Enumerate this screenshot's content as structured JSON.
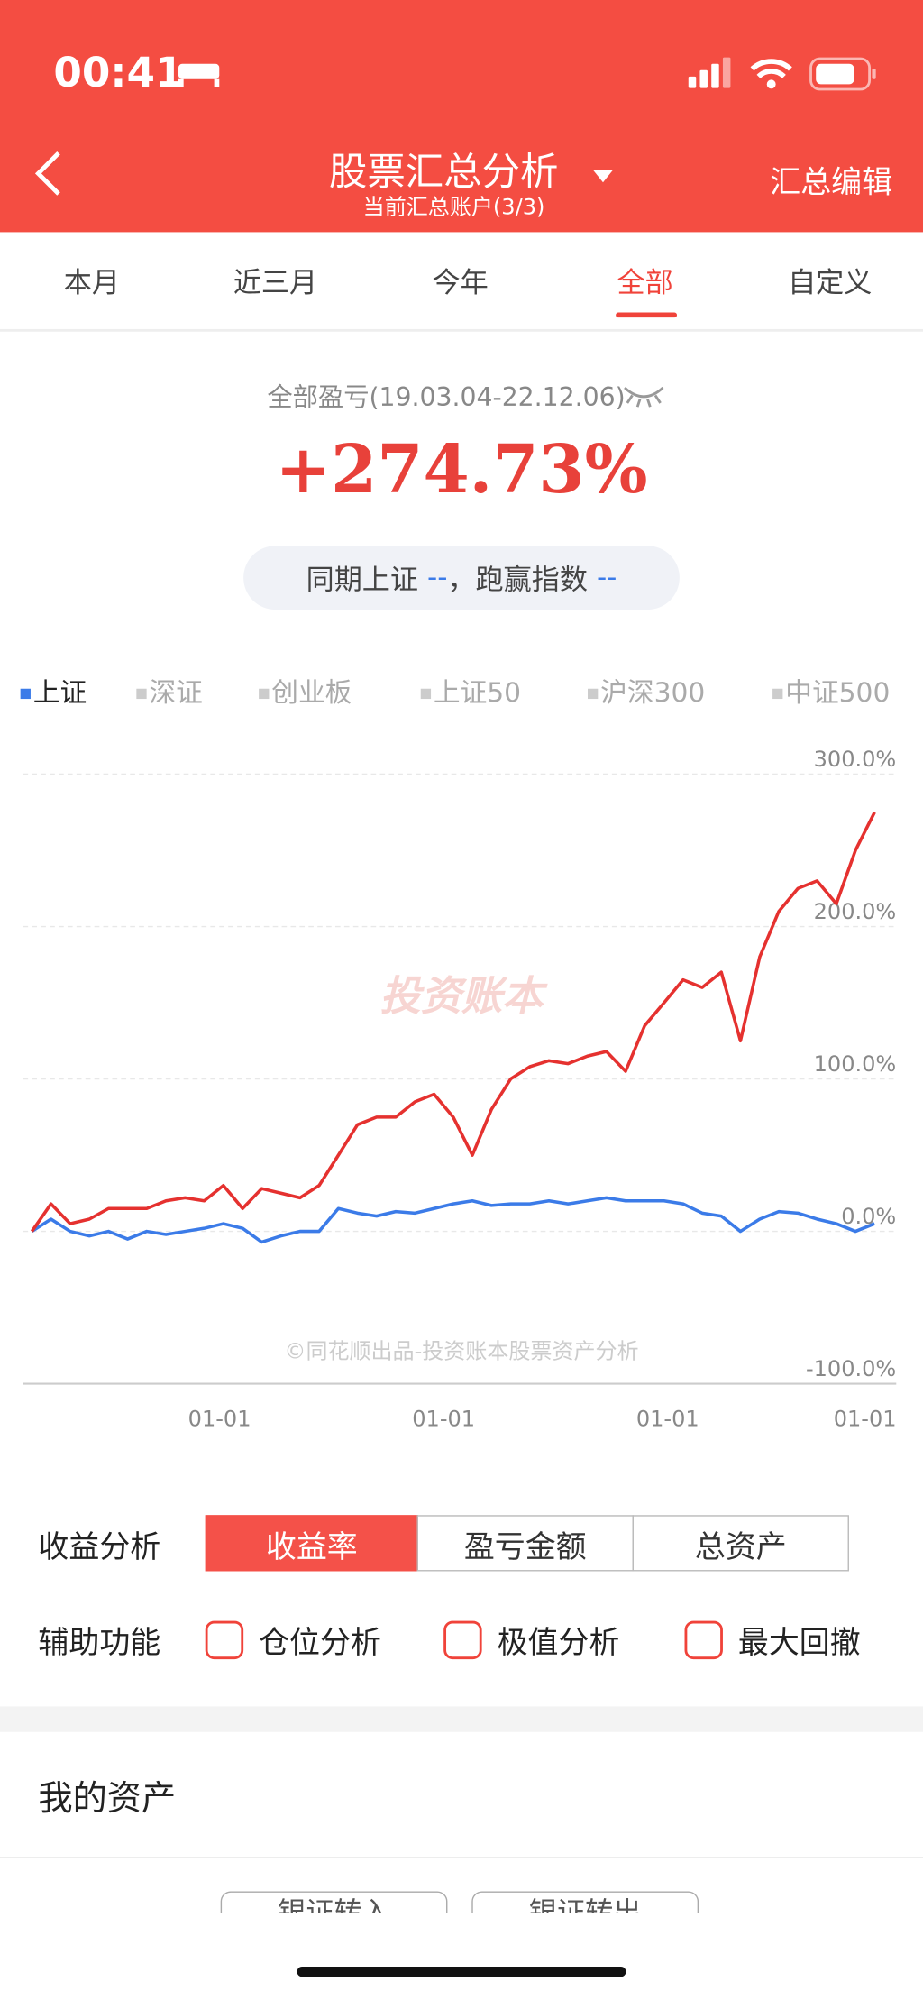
{
  "status_bar": {
    "time": "00:41"
  },
  "header": {
    "title": "股票汇总分析",
    "subtitle": "当前汇总账户(3/3)",
    "action": "汇总编辑"
  },
  "tabs": [
    "本月",
    "近三月",
    "今年",
    "全部",
    "自定义"
  ],
  "summary": {
    "label": "全部盈亏(19.03.04-22.12.06)",
    "value": "+274.73%",
    "compare_label": "同期上证",
    "compare_value": "--",
    "beat_label": "，跑赢指数",
    "beat_value": "--"
  },
  "index_tabs": [
    "深证",
    "创业板",
    "上证50",
    "沪深300",
    "中证500"
  ],
  "chart_data": {
    "type": "line",
    "series": [
      {
        "color": "#e5312f",
        "values": [
          0,
          18,
          5,
          8,
          15,
          15,
          15,
          20,
          22,
          20,
          30,
          15,
          28,
          25,
          22,
          30,
          50,
          70,
          75,
          75,
          85,
          90,
          75,
          50,
          80,
          100,
          108,
          112,
          110,
          115,
          118,
          105,
          135,
          150,
          165,
          160,
          170,
          125,
          180,
          210,
          225,
          230,
          215,
          250,
          275
        ]
      },
      {
        "name": "上证",
        "color": "#3b7be8",
        "values": [
          0,
          8,
          0,
          -3,
          0,
          -5,
          0,
          -2,
          0,
          2,
          5,
          2,
          -7,
          -3,
          0,
          0,
          15,
          12,
          10,
          13,
          12,
          15,
          18,
          20,
          17,
          18,
          18,
          20,
          18,
          20,
          22,
          20,
          20,
          20,
          18,
          12,
          10,
          0,
          8,
          13,
          12,
          8,
          5,
          0,
          5
        ]
      }
    ],
    "xlim": [
      0,
      44
    ],
    "xticks": [
      {
        "value": 9.8,
        "label": "01-01"
      },
      {
        "value": 21.5,
        "label": "01-01"
      },
      {
        "value": 33.2,
        "label": "01-01"
      },
      {
        "value": 43.5,
        "label": "01-01"
      }
    ],
    "ylim": [
      -100,
      300
    ],
    "yticks": [
      {
        "value": -100,
        "label": "-100.0%"
      },
      {
        "value": 0,
        "label": "0.0%"
      },
      {
        "value": 100,
        "label": "100.0%"
      },
      {
        "value": 200,
        "label": "200.0%"
      },
      {
        "value": 300,
        "label": "300.0%"
      }
    ],
    "grid": true,
    "watermark": "投资账本",
    "footnote": "©同花顺出品-投资账本股票资产分析"
  },
  "controls": {
    "analysis_label": "收益分析",
    "analysis_options": [
      "收益率",
      "盈亏金额",
      "总资产"
    ],
    "aux_label": "辅助功能",
    "aux_options": [
      "仓位分析",
      "极值分析",
      "最大回撤"
    ]
  },
  "assets": {
    "title": "我的资产",
    "buttons": [
      "银证转入",
      "银证转出"
    ]
  }
}
